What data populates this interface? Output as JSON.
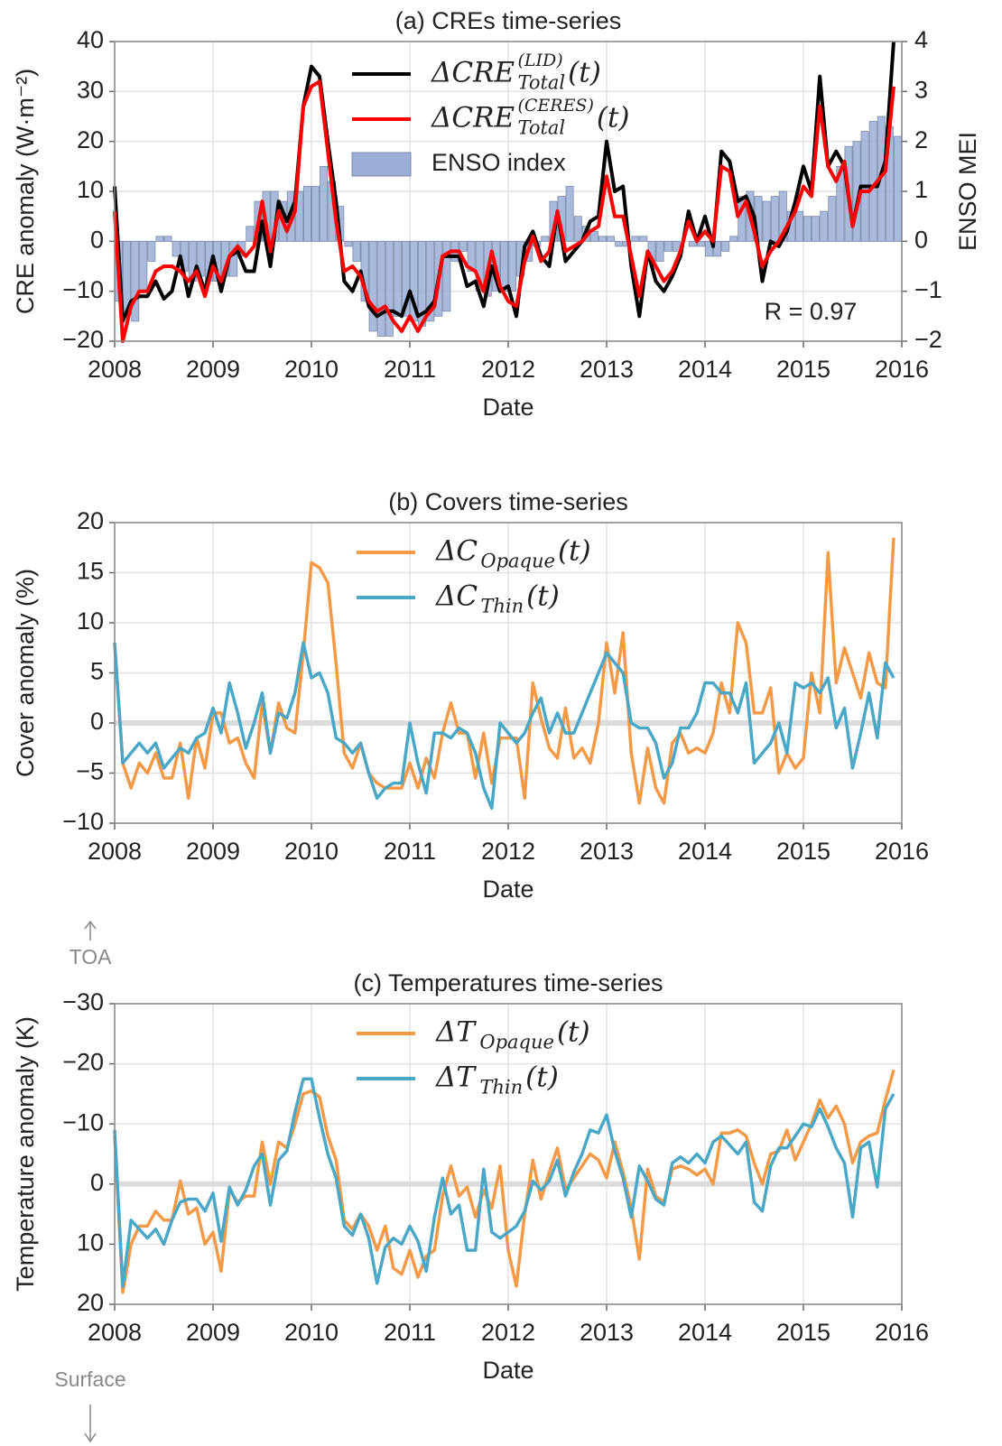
{
  "chart_data": [
    {
      "type": "line",
      "title": "(a) CREs time-series",
      "xlabel": "Date",
      "ylabel": "CRE anomaly (W·m⁻²)",
      "y2label": "ENSO MEI",
      "annotations": [
        "R = 0.97"
      ],
      "x": [
        2008,
        2008.083,
        2008.167,
        2008.25,
        2008.333,
        2008.417,
        2008.5,
        2008.583,
        2008.667,
        2008.75,
        2008.833,
        2008.917,
        2009,
        2009.083,
        2009.167,
        2009.25,
        2009.333,
        2009.417,
        2009.5,
        2009.583,
        2009.667,
        2009.75,
        2009.833,
        2009.917,
        2010,
        2010.083,
        2010.167,
        2010.25,
        2010.333,
        2010.417,
        2010.5,
        2010.583,
        2010.667,
        2010.75,
        2010.833,
        2010.917,
        2011,
        2011.083,
        2011.167,
        2011.25,
        2011.333,
        2011.417,
        2011.5,
        2011.583,
        2011.667,
        2011.75,
        2011.833,
        2011.917,
        2012,
        2012.083,
        2012.167,
        2012.25,
        2012.333,
        2012.417,
        2012.5,
        2012.583,
        2012.667,
        2012.75,
        2012.833,
        2012.917,
        2013,
        2013.083,
        2013.167,
        2013.25,
        2013.333,
        2013.417,
        2013.5,
        2013.583,
        2013.667,
        2013.75,
        2013.833,
        2013.917,
        2014,
        2014.083,
        2014.167,
        2014.25,
        2014.333,
        2014.417,
        2014.5,
        2014.583,
        2014.667,
        2014.75,
        2014.833,
        2014.917,
        2015,
        2015.083,
        2015.167,
        2015.25,
        2015.333,
        2015.417,
        2015.5,
        2015.583,
        2015.667,
        2015.75,
        2015.833,
        2015.917
      ],
      "xlim": [
        2008,
        2016
      ],
      "xticks": [
        2008,
        2009,
        2010,
        2011,
        2012,
        2013,
        2014,
        2015,
        2016
      ],
      "ylim": [
        -20,
        40
      ],
      "yticks": [
        {
          "value": -20,
          "label": "−20"
        },
        {
          "value": -10,
          "label": "−10"
        },
        0,
        10,
        20,
        30,
        40
      ],
      "y2lim": [
        -2,
        4
      ],
      "y2ticks": [
        {
          "value": -2,
          "label": "−2"
        },
        {
          "value": -1,
          "label": "−1"
        },
        0,
        1,
        2,
        3,
        4
      ],
      "grid": true,
      "zero_line": false,
      "series": [
        {
          "name": "ΔCRE",
          "sub": "Total",
          "sup": "(LID)",
          "arg": "(t)",
          "color": "#000000",
          "values": [
            11,
            -16,
            -12,
            -11,
            -11,
            -8,
            -11.5,
            -10,
            -3,
            -11,
            -5,
            -10,
            -3,
            -10,
            -3,
            -2,
            -6,
            -6,
            4,
            -5,
            8,
            4,
            8,
            27,
            35,
            33,
            20,
            8,
            -8,
            -10,
            -6,
            -13,
            -15,
            -14,
            -14,
            -15,
            -10,
            -15,
            -14,
            -12,
            -3,
            -3,
            -3,
            -9,
            -8,
            -13,
            -5,
            -10,
            -9,
            -15,
            -1,
            2,
            -3,
            -5,
            6,
            -4,
            -2,
            0,
            4,
            5,
            20,
            10,
            11,
            -5,
            -15,
            -2,
            -8,
            -10,
            -7,
            -3,
            6,
            0,
            5,
            -1,
            18,
            16,
            8,
            9,
            5,
            -8,
            0,
            -1,
            2,
            8,
            15,
            10,
            33,
            15,
            18,
            15,
            3,
            11,
            11,
            11,
            16,
            40
          ]
        },
        {
          "name": "ΔCRE",
          "sub": "Total",
          "sup": "(CERES)",
          "arg": "(t)",
          "color": "#ff0000",
          "values": [
            6,
            -20,
            -13,
            -10,
            -10,
            -6,
            -5,
            -5,
            -6,
            -8,
            -6,
            -11,
            -5,
            -8,
            -3,
            -1,
            -3,
            -1,
            8,
            -2,
            6,
            2,
            6,
            27,
            31,
            32,
            18,
            4,
            -6,
            -5,
            -7,
            -12,
            -14,
            -13,
            -16,
            -18,
            -15,
            -18,
            -15,
            -13,
            -3,
            -2,
            -2,
            -5,
            -6,
            -10,
            -2,
            -9,
            -12,
            -13,
            -4,
            1,
            -4,
            -2,
            6,
            -2,
            -1,
            0,
            2,
            3,
            13,
            5,
            5,
            -3,
            -11,
            -2,
            -5,
            -8,
            -6,
            -2,
            4,
            0,
            2,
            0,
            15,
            14,
            5,
            8,
            2,
            -5,
            -2,
            0,
            3,
            6,
            11,
            9,
            27,
            15,
            12,
            16,
            3,
            10,
            10,
            12,
            14,
            31
          ]
        },
        {
          "name": "ENSO index",
          "type": "bar",
          "axis": "y2",
          "color": "#9aaed6",
          "values": [
            -1.2,
            -1.4,
            -1.6,
            -1.0,
            -0.4,
            0.1,
            0.1,
            -0.3,
            -0.6,
            -0.8,
            -0.7,
            -0.8,
            -0.8,
            -0.7,
            -0.7,
            -0.3,
            0.3,
            0.8,
            1.0,
            1.0,
            0.8,
            1.0,
            1.0,
            1.1,
            1.1,
            1.5,
            1.2,
            0.7,
            -0.1,
            -0.4,
            -1.2,
            -1.8,
            -1.9,
            -1.9,
            -1.5,
            -1.5,
            -1.6,
            -1.7,
            -1.6,
            -1.5,
            -1.4,
            -0.4,
            -0.2,
            -0.6,
            -1.0,
            -1.1,
            -1.0,
            -1.0,
            -1.0,
            -0.7,
            -0.4,
            -0.1,
            0.1,
            0.8,
            0.9,
            1.1,
            0.5,
            0.3,
            0.2,
            0.1,
            0.1,
            -0.1,
            -0.1,
            0.1,
            0.1,
            -0.4,
            -0.4,
            -0.2,
            -0.2,
            0.0,
            -0.1,
            -0.1,
            -0.3,
            -0.3,
            -0.2,
            0.1,
            0.9,
            1.0,
            0.9,
            0.8,
            0.9,
            1.0,
            0.6,
            0.6,
            0.5,
            0.5,
            0.6,
            0.9,
            1.5,
            1.9,
            2.0,
            2.2,
            2.4,
            2.5,
            2.3,
            2.1
          ]
        }
      ]
    },
    {
      "type": "line",
      "title": "(b) Covers time-series",
      "xlabel": "Date",
      "ylabel": "Cover anomaly (%)",
      "x": [
        2008,
        2008.083,
        2008.167,
        2008.25,
        2008.333,
        2008.417,
        2008.5,
        2008.583,
        2008.667,
        2008.75,
        2008.833,
        2008.917,
        2009,
        2009.083,
        2009.167,
        2009.25,
        2009.333,
        2009.417,
        2009.5,
        2009.583,
        2009.667,
        2009.75,
        2009.833,
        2009.917,
        2010,
        2010.083,
        2010.167,
        2010.25,
        2010.333,
        2010.417,
        2010.5,
        2010.583,
        2010.667,
        2010.75,
        2010.833,
        2010.917,
        2011,
        2011.083,
        2011.167,
        2011.25,
        2011.333,
        2011.417,
        2011.5,
        2011.583,
        2011.667,
        2011.75,
        2011.833,
        2011.917,
        2012,
        2012.083,
        2012.167,
        2012.25,
        2012.333,
        2012.417,
        2012.5,
        2012.583,
        2012.667,
        2012.75,
        2012.833,
        2012.917,
        2013,
        2013.083,
        2013.167,
        2013.25,
        2013.333,
        2013.417,
        2013.5,
        2013.583,
        2013.667,
        2013.75,
        2013.833,
        2013.917,
        2014,
        2014.083,
        2014.167,
        2014.25,
        2014.333,
        2014.417,
        2014.5,
        2014.583,
        2014.667,
        2014.75,
        2014.833,
        2014.917,
        2015,
        2015.083,
        2015.167,
        2015.25,
        2015.333,
        2015.417,
        2015.5,
        2015.583,
        2015.667,
        2015.75,
        2015.833,
        2015.917
      ],
      "xlim": [
        2008,
        2016
      ],
      "xticks": [
        2008,
        2009,
        2010,
        2011,
        2012,
        2013,
        2014,
        2015,
        2016
      ],
      "ylim": [
        -10,
        20
      ],
      "yticks": [
        {
          "value": -10,
          "label": "−10"
        },
        {
          "value": -5,
          "label": "−5"
        },
        0,
        5,
        10,
        15,
        20
      ],
      "grid": true,
      "zero_line": true,
      "series": [
        {
          "name": "ΔC",
          "sub": "Opaque",
          "arg": "(t)",
          "color": "#f39a48",
          "values": [
            8,
            -4,
            -6.5,
            -4,
            -5,
            -3,
            -5.5,
            -5.5,
            -2,
            -7.5,
            -1.5,
            -4.5,
            1,
            1,
            -2,
            -1.5,
            -4,
            -5.5,
            2,
            -3,
            2,
            -0.5,
            -1,
            7,
            16,
            15.5,
            14,
            6,
            -3,
            -4.5,
            -2,
            -5,
            -6,
            -6.5,
            -6.5,
            -6.5,
            -4,
            -6.5,
            -3.5,
            -5.5,
            -1,
            2,
            -1,
            -1,
            -5.5,
            -1,
            -6,
            -1.5,
            -1.5,
            -1.5,
            -7.5,
            4,
            0.5,
            -2.5,
            -3.5,
            1.5,
            -3.5,
            -2.5,
            -4,
            0,
            8,
            3,
            9,
            -3,
            -8,
            -2.5,
            -6.5,
            -8,
            -2,
            -1,
            -3,
            -2.5,
            -3,
            -1,
            4,
            1,
            10,
            8,
            1,
            1,
            3.5,
            -5,
            -3,
            -4.5,
            -3.5,
            5,
            1,
            17,
            4,
            7.5,
            5,
            2.5,
            7,
            4,
            3.5,
            18.5
          ]
        },
        {
          "name": "ΔC",
          "sub": "Thin",
          "arg": "(t)",
          "color": "#4aa8c6",
          "values": [
            8,
            -4,
            -3,
            -2,
            -3,
            -2,
            -4.5,
            -3.5,
            -2.5,
            -3,
            -1.5,
            -1,
            1.5,
            -1,
            4,
            1,
            -2.5,
            0,
            3,
            -3,
            1,
            0.5,
            3,
            8,
            4.5,
            5,
            3,
            -1.5,
            -2,
            -3,
            -2,
            -5,
            -7.5,
            -6.5,
            -6,
            -6,
            0,
            -4,
            -7,
            -1,
            -1,
            -1.5,
            -0.5,
            -1,
            -3,
            -6.5,
            -8.5,
            0,
            -1,
            -2,
            -1,
            1,
            2.5,
            -1,
            1,
            -1,
            -1,
            1,
            3,
            5,
            7,
            6,
            5,
            0,
            -0.5,
            -0.5,
            -2,
            -5.5,
            -4,
            -0.5,
            -0.5,
            1,
            4,
            4,
            3,
            3,
            1,
            4,
            -4,
            -3,
            -2,
            0,
            -3,
            4,
            3.5,
            4,
            3,
            4.5,
            -0.5,
            1.5,
            -4.5,
            -1,
            3,
            -1.5,
            6,
            4.5
          ]
        }
      ]
    },
    {
      "type": "line",
      "title": "(c) Temperatures time-series",
      "xlabel": "Date",
      "ylabel": "Temperature anomaly (K)",
      "top_note": "TOA",
      "bottom_note": "Surface",
      "x": [
        2008,
        2008.083,
        2008.167,
        2008.25,
        2008.333,
        2008.417,
        2008.5,
        2008.583,
        2008.667,
        2008.75,
        2008.833,
        2008.917,
        2009,
        2009.083,
        2009.167,
        2009.25,
        2009.333,
        2009.417,
        2009.5,
        2009.583,
        2009.667,
        2009.75,
        2009.833,
        2009.917,
        2010,
        2010.083,
        2010.167,
        2010.25,
        2010.333,
        2010.417,
        2010.5,
        2010.583,
        2010.667,
        2010.75,
        2010.833,
        2010.917,
        2011,
        2011.083,
        2011.167,
        2011.25,
        2011.333,
        2011.417,
        2011.5,
        2011.583,
        2011.667,
        2011.75,
        2011.833,
        2011.917,
        2012,
        2012.083,
        2012.167,
        2012.25,
        2012.333,
        2012.417,
        2012.5,
        2012.583,
        2012.667,
        2012.75,
        2012.833,
        2012.917,
        2013,
        2013.083,
        2013.167,
        2013.25,
        2013.333,
        2013.417,
        2013.5,
        2013.583,
        2013.667,
        2013.75,
        2013.833,
        2013.917,
        2014,
        2014.083,
        2014.167,
        2014.25,
        2014.333,
        2014.417,
        2014.5,
        2014.583,
        2014.667,
        2014.75,
        2014.833,
        2014.917,
        2015,
        2015.083,
        2015.167,
        2015.25,
        2015.333,
        2015.417,
        2015.5,
        2015.583,
        2015.667,
        2015.75,
        2015.833,
        2015.917
      ],
      "xlim": [
        2008,
        2016
      ],
      "xticks": [
        2008,
        2009,
        2010,
        2011,
        2012,
        2013,
        2014,
        2015,
        2016
      ],
      "ylim": [
        20,
        -30
      ],
      "yticks": [
        20,
        10,
        0,
        {
          "value": -10,
          "label": "−10"
        },
        {
          "value": -20,
          "label": "−20"
        },
        {
          "value": -30,
          "label": "−30"
        }
      ],
      "grid": true,
      "zero_line": true,
      "series": [
        {
          "name": "ΔT",
          "sub": "Opaque",
          "arg": "(t)",
          "color": "#f39a48",
          "values": [
            -8,
            18,
            10,
            7,
            7,
            4.5,
            6,
            6,
            -0.5,
            5,
            4,
            10,
            8,
            14.5,
            1,
            3,
            2,
            2,
            -7,
            0,
            -7,
            -6,
            -10,
            -15,
            -15.5,
            -14.5,
            -8,
            -4,
            6,
            7.5,
            5,
            7,
            11,
            7,
            14,
            15,
            11,
            15.5,
            12,
            11,
            2,
            -3,
            2,
            0.5,
            5.5,
            1,
            4,
            -3,
            11,
            17,
            5,
            -4,
            2.5,
            -2,
            -6,
            1,
            -1,
            -3,
            -5,
            -4,
            -1,
            -7,
            -2,
            4,
            12.5,
            -2.5,
            2,
            3,
            -2.5,
            -3,
            -2.5,
            -1.5,
            -2.5,
            0,
            -8.5,
            -8.5,
            -9,
            -8,
            -3.5,
            0,
            -5,
            -5.5,
            -9,
            -4,
            -7,
            -10,
            -14,
            -11,
            -13,
            -10,
            -3.5,
            -7,
            -8,
            -8.5,
            -14,
            -19
          ]
        },
        {
          "name": "ΔT",
          "sub": "Thin",
          "arg": "(t)",
          "color": "#4aa8c6",
          "values": [
            -9,
            17,
            6,
            7.5,
            9,
            7.5,
            10,
            6,
            3,
            2.5,
            2.5,
            4.5,
            1.5,
            9.5,
            0.5,
            3.5,
            1,
            -3,
            -5,
            3.5,
            -4,
            -5.5,
            -12,
            -17.5,
            -17.5,
            -11,
            -5,
            -1,
            7,
            8.5,
            5,
            9,
            16.5,
            10.5,
            9,
            10,
            7,
            9.5,
            14.5,
            5.5,
            -1,
            5,
            3.5,
            11,
            11,
            -2.5,
            8,
            9,
            8,
            7,
            4.5,
            -0.5,
            1,
            -0.5,
            -4,
            2,
            -2,
            -5,
            -9,
            -8.5,
            -11.5,
            -5.5,
            -1,
            5.5,
            -3,
            -0.5,
            2.5,
            3.5,
            -3.5,
            -4.5,
            -3.5,
            -5,
            -3.5,
            -7,
            -8,
            -6.5,
            -5,
            -7,
            3,
            4.5,
            -3,
            -6,
            -6,
            -8,
            -10,
            -9.5,
            -12.5,
            -9.5,
            -6,
            -3.5,
            5.5,
            -6,
            -7,
            0.5,
            -12.5,
            -15
          ]
        }
      ]
    }
  ]
}
